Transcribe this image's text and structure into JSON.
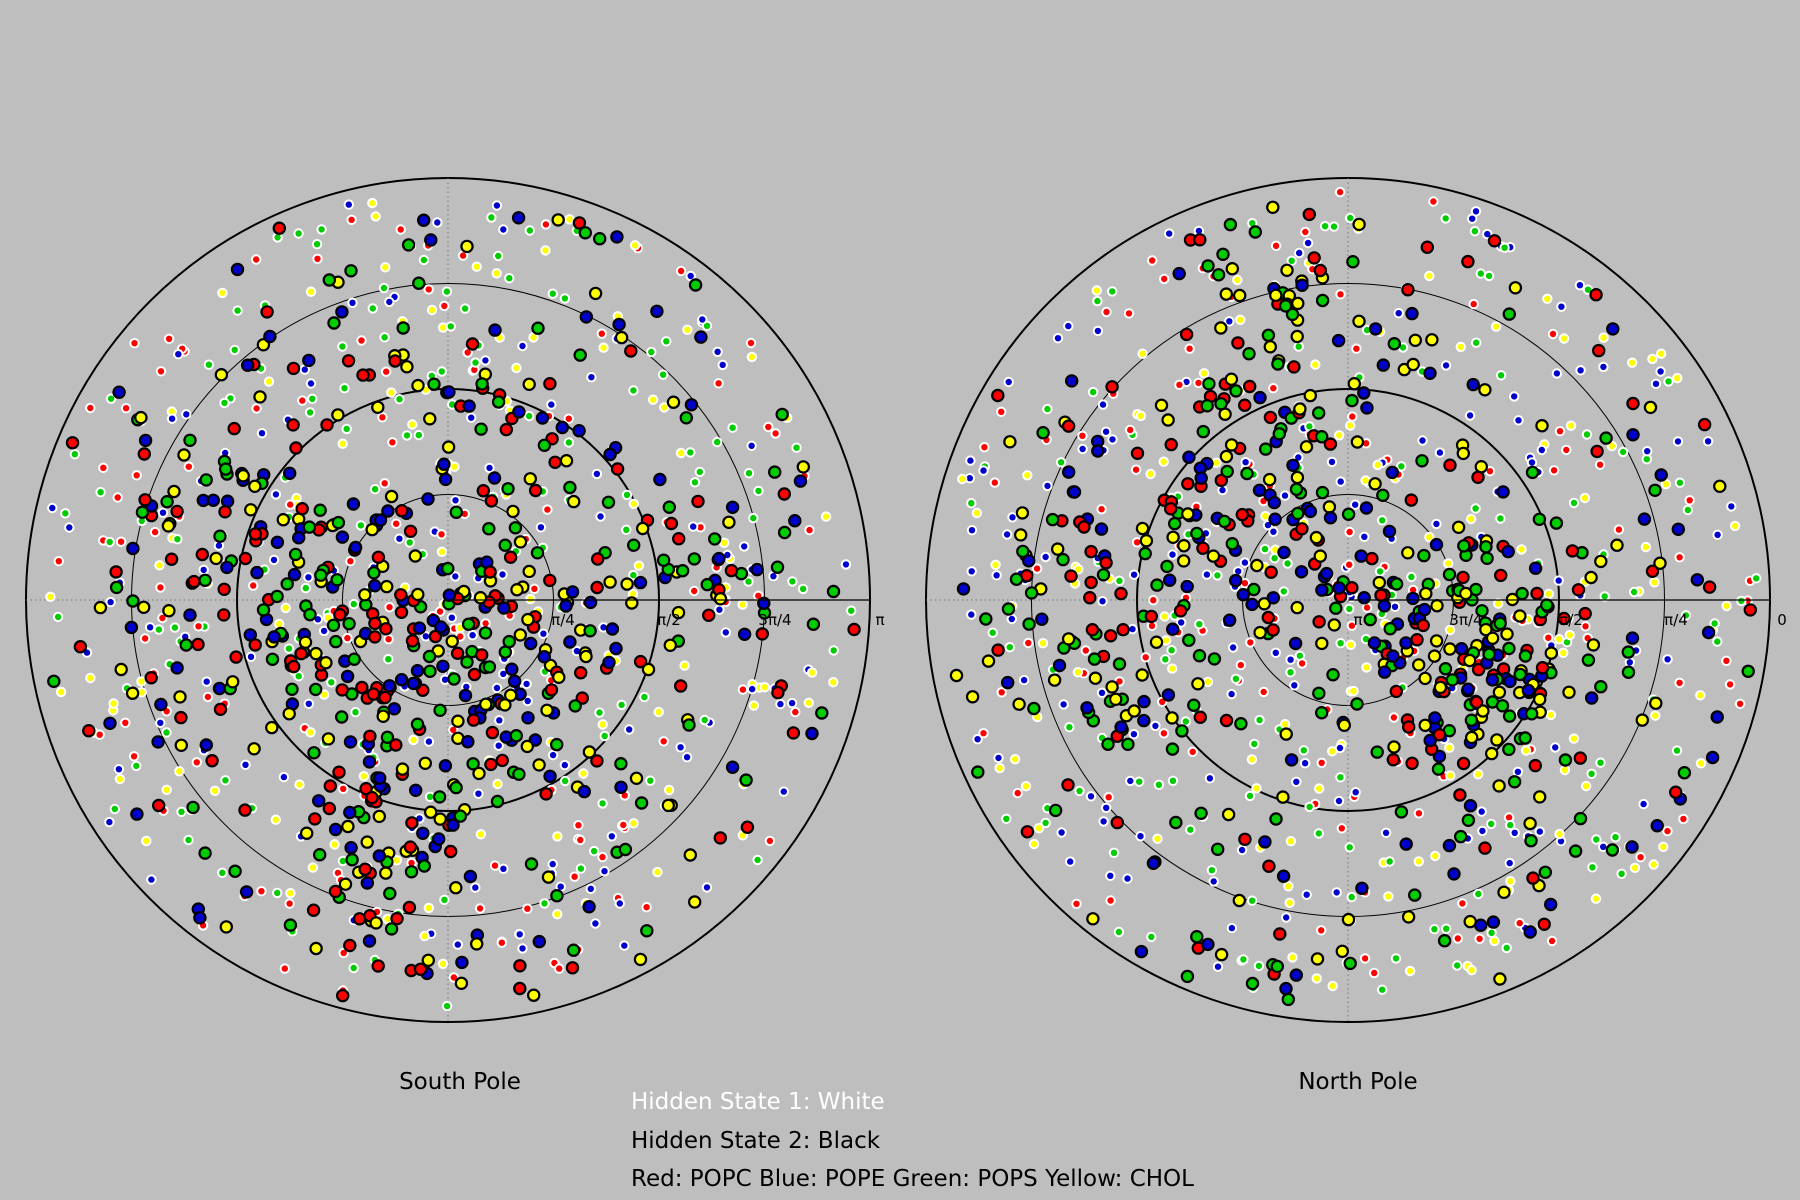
{
  "chart_data": [
    {
      "type": "scatter",
      "coordinate_system": "polar",
      "title": "South Pole",
      "radial_tick_labels": [
        "π/4",
        "π/2",
        "3π/4",
        "π"
      ],
      "rlim": [
        0,
        3.1416
      ],
      "grid": true,
      "seed": 7,
      "points_per_state": {
        "white": 540,
        "black": 620
      }
    },
    {
      "type": "scatter",
      "coordinate_system": "polar",
      "title": "North Pole",
      "radial_tick_labels": [
        "π",
        "3π/4",
        "π/2",
        "π/4",
        "0"
      ],
      "rlim": [
        0,
        3.1416
      ],
      "grid": true,
      "seed": 19,
      "points_per_state": {
        "white": 560,
        "black": 600
      }
    }
  ],
  "legend": {
    "hidden_state_1": "Hidden State 1: White",
    "hidden_state_2": "Hidden State 2: Black",
    "lipids": "Red: POPC Blue: POPE Green: POPS Yellow: CHOL"
  },
  "colors": {
    "background": "#bebebe",
    "POPC": "#ff0000",
    "POPE": "#0000cc",
    "POPS": "#00cc00",
    "CHOL": "#ffff00",
    "hidden_state_1_edge": "#ffffff",
    "hidden_state_2_edge": "#000000"
  }
}
